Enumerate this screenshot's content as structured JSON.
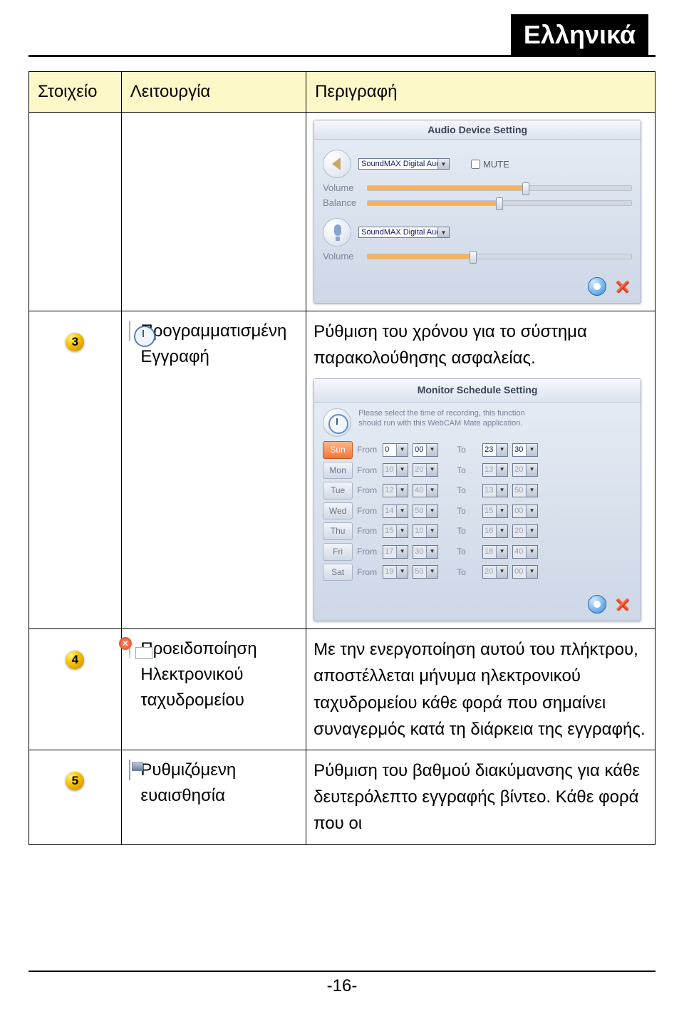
{
  "language_badge": "Ελληνικά",
  "table": {
    "headers": [
      "Στοιχείο",
      "Λειτουργία",
      "Περιγραφή"
    ]
  },
  "audio_panel": {
    "title": "Audio Device Setting",
    "output_device": "SoundMAX Digital Audio",
    "input_device": "SoundMAX Digital Audio",
    "mute_label": "MUTE",
    "labels": {
      "volume": "Volume",
      "balance": "Balance"
    },
    "output_volume_pct": 60,
    "balance_pct": 50,
    "input_volume_pct": 40
  },
  "row3": {
    "badge": "3",
    "function_line1": "Προγραμματισμένη",
    "function_line2": "Εγγραφή",
    "desc": "Ρύθμιση του χρόνου για το σύστημα παρακολούθησης ασφαλείας.",
    "schedule": {
      "title": "Monitor Schedule Setting",
      "note1": "Please select the time of recording, this function",
      "note2": "should run with this WebCAM Mate application.",
      "from": "From",
      "to": "To",
      "days": [
        {
          "label": "Sun",
          "active": true,
          "fh": "0",
          "fm": "00",
          "th": "23",
          "tm": "30"
        },
        {
          "label": "Mon",
          "active": false,
          "fh": "10",
          "fm": "20",
          "th": "13",
          "tm": "20"
        },
        {
          "label": "Tue",
          "active": false,
          "fh": "12",
          "fm": "40",
          "th": "13",
          "tm": "50"
        },
        {
          "label": "Wed",
          "active": false,
          "fh": "14",
          "fm": "50",
          "th": "15",
          "tm": "00"
        },
        {
          "label": "Thu",
          "active": false,
          "fh": "15",
          "fm": "10",
          "th": "16",
          "tm": "20"
        },
        {
          "label": "Fri",
          "active": false,
          "fh": "17",
          "fm": "30",
          "th": "18",
          "tm": "40"
        },
        {
          "label": "Sat",
          "active": false,
          "fh": "19",
          "fm": "50",
          "th": "20",
          "tm": "00"
        }
      ]
    }
  },
  "row4": {
    "badge": "4",
    "function_line1": "Προειδοποίηση",
    "function_line2": "Ηλεκτρονικού",
    "function_line3": "ταχυδρομείου",
    "desc": "Με την ενεργοποίηση αυτού του πλήκτρου, αποστέλλεται μήνυμα ηλεκτρονικού ταχυδρομείου κάθε φορά που σημαίνει συναγερμός κατά τη διάρκεια της εγγραφής."
  },
  "row5": {
    "badge": "5",
    "function_line1": "Ρυθμιζόμενη",
    "function_line2": "ευαισθησία",
    "desc": "Ρύθμιση του βαθμού διακύμανσης για κάθε δευτερόλεπτο εγγραφής βίντεο. Κάθε φορά που οι"
  },
  "page_number": "-16-"
}
